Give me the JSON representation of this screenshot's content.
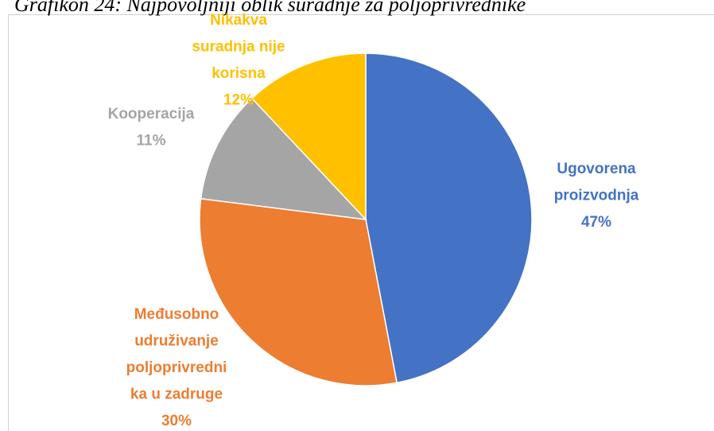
{
  "chart_data": {
    "type": "pie",
    "title": "Grafikon 24: Najpovoljniji oblik suradnje za poljoprivrednike",
    "categories": [
      "Ugovorena\nproizvodnja",
      "Međusobno\nudruživanje\npoljoprivredni\nka u zadruge",
      "Kooperacija",
      "Nikakva\nsuradnja nije\nkorisna"
    ],
    "values": [
      47,
      30,
      11,
      12
    ],
    "value_labels": [
      "47%",
      "30%",
      "11%",
      "12%"
    ],
    "colors": [
      "#4472c4",
      "#ed7d31",
      "#a5a5a5",
      "#ffc000"
    ]
  }
}
